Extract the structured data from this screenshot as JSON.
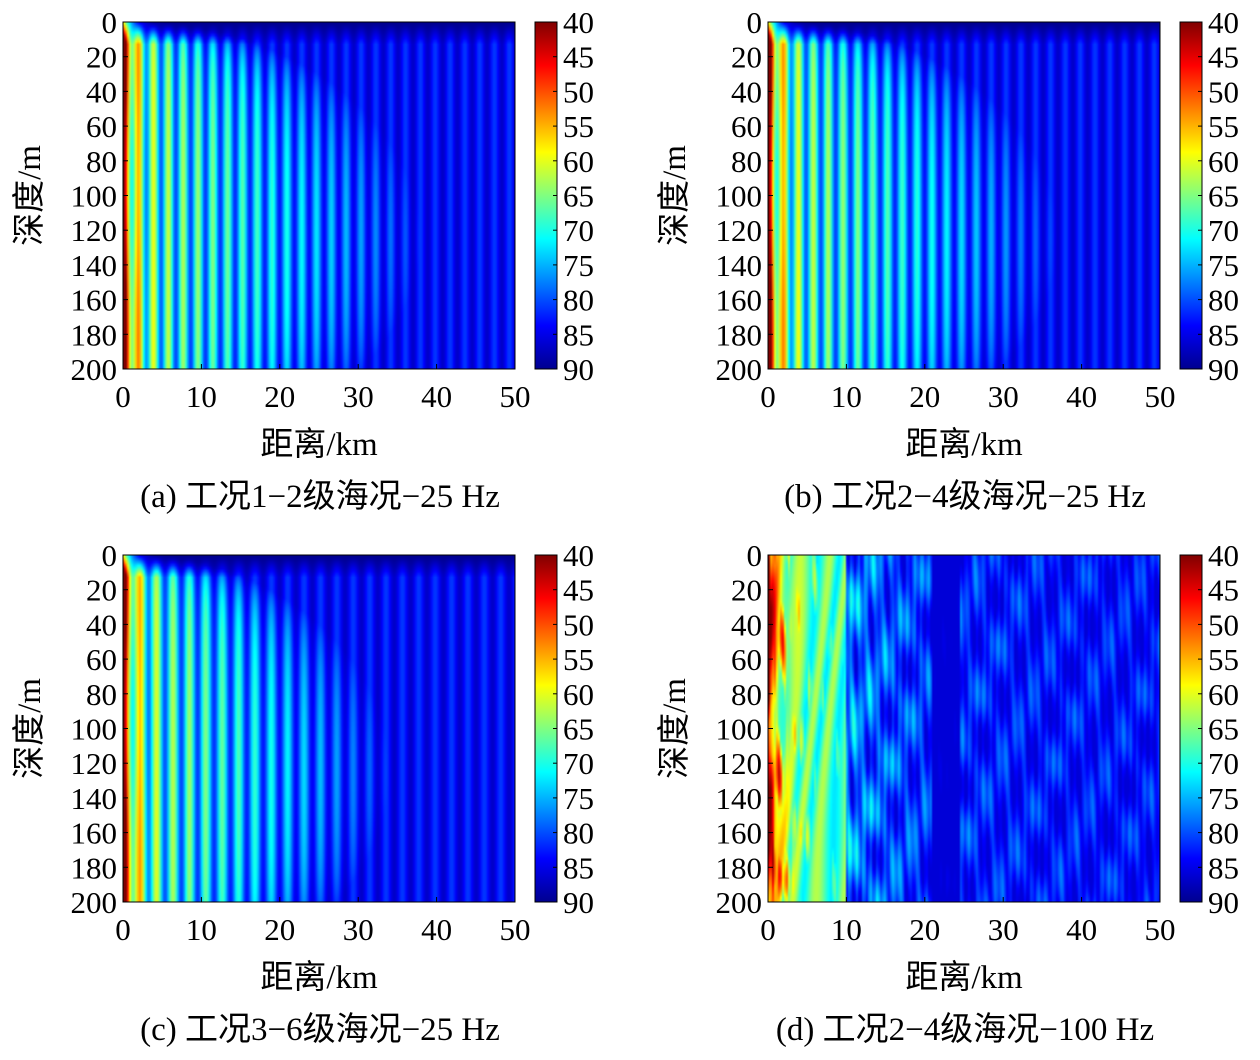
{
  "figure": {
    "colorbar_colors": [
      "#00008f",
      "#0000ff",
      "#0080ff",
      "#00ffff",
      "#80ff80",
      "#ffff00",
      "#ff8000",
      "#ff0000",
      "#800000"
    ]
  },
  "chart_data": [
    {
      "type": "heatmap",
      "caption": "(a) 工况1−2级海况−25 Hz",
      "xlabel": "距离/km",
      "ylabel": "深度/m",
      "xlim": [
        0,
        50
      ],
      "ylim": [
        0,
        200
      ],
      "y_inverted": true,
      "x_ticks": [
        "0",
        "10",
        "20",
        "30",
        "40",
        "50"
      ],
      "y_ticks": [
        "0",
        "20",
        "40",
        "60",
        "80",
        "100",
        "120",
        "140",
        "160",
        "180",
        "200"
      ],
      "colorbar": {
        "range": [
          40,
          90
        ],
        "reversed": true,
        "ticks": [
          "40",
          "45",
          "50",
          "55",
          "60",
          "65",
          "70",
          "75",
          "80",
          "85",
          "90"
        ]
      },
      "pattern": {
        "frequency_hz": 25,
        "fringe_spacing_km": 1.9,
        "reach_km": 38,
        "reach_shape": "dome"
      }
    },
    {
      "type": "heatmap",
      "caption": "(b) 工况2−4级海况−25 Hz",
      "xlabel": "距离/km",
      "ylabel": "深度/m",
      "xlim": [
        0,
        50
      ],
      "ylim": [
        0,
        200
      ],
      "y_inverted": true,
      "x_ticks": [
        "0",
        "10",
        "20",
        "30",
        "40",
        "50"
      ],
      "y_ticks": [
        "0",
        "20",
        "40",
        "60",
        "80",
        "100",
        "120",
        "140",
        "160",
        "180",
        "200"
      ],
      "colorbar": {
        "range": [
          40,
          90
        ],
        "reversed": true,
        "ticks": [
          "40",
          "45",
          "50",
          "55",
          "60",
          "65",
          "70",
          "75",
          "80",
          "85",
          "90"
        ]
      },
      "pattern": {
        "frequency_hz": 25,
        "fringe_spacing_km": 1.9,
        "reach_km": 37,
        "reach_shape": "dome"
      }
    },
    {
      "type": "heatmap",
      "caption": "(c) 工况3−6级海况−25 Hz",
      "xlabel": "距离/km",
      "ylabel": "深度/m",
      "xlim": [
        0,
        50
      ],
      "ylim": [
        0,
        200
      ],
      "y_inverted": true,
      "x_ticks": [
        "0",
        "10",
        "20",
        "30",
        "40",
        "50"
      ],
      "y_ticks": [
        "0",
        "20",
        "40",
        "60",
        "80",
        "100",
        "120",
        "140",
        "160",
        "180",
        "200"
      ],
      "colorbar": {
        "range": [
          40,
          90
        ],
        "reversed": true,
        "ticks": [
          "40",
          "45",
          "50",
          "55",
          "60",
          "65",
          "70",
          "75",
          "80",
          "85",
          "90"
        ]
      },
      "pattern": {
        "frequency_hz": 25,
        "fringe_spacing_km": 2.1,
        "reach_km": 34,
        "reach_shape": "dome"
      }
    },
    {
      "type": "heatmap",
      "caption": "(d) 工况2−4级海况−100 Hz",
      "xlabel": "距离/km",
      "ylabel": "深度/m",
      "xlim": [
        0,
        50
      ],
      "ylim": [
        0,
        200
      ],
      "y_inverted": true,
      "x_ticks": [
        "0",
        "10",
        "20",
        "30",
        "40",
        "50"
      ],
      "y_ticks": [
        "0",
        "20",
        "40",
        "60",
        "80",
        "100",
        "120",
        "140",
        "160",
        "180",
        "200"
      ],
      "colorbar": {
        "range": [
          40,
          90
        ],
        "reversed": true,
        "ticks": [
          "40",
          "45",
          "50",
          "55",
          "60",
          "65",
          "70",
          "75",
          "80",
          "85",
          "90"
        ]
      },
      "pattern": {
        "frequency_hz": 100,
        "fringe_spacing_km": 2.4,
        "reach_km": 50,
        "reach_shape": "full"
      }
    }
  ]
}
